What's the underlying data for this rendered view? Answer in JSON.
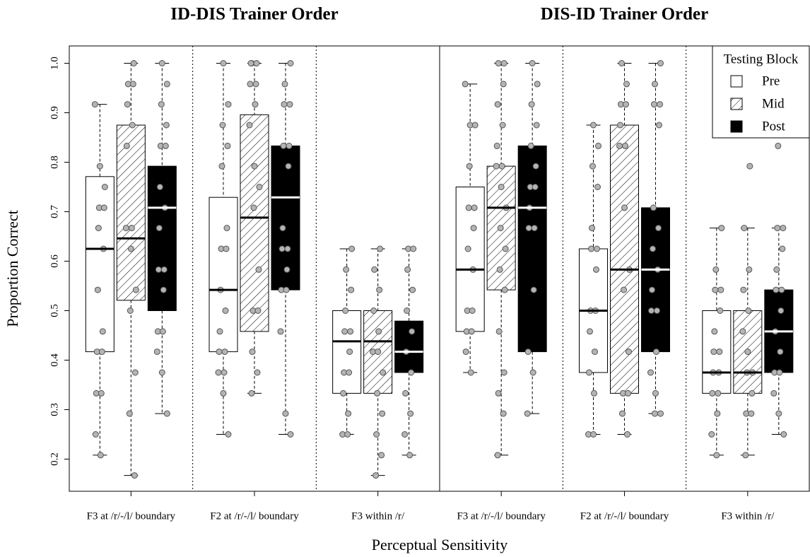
{
  "chart_data": {
    "type": "box",
    "ylabel": "Proportion Correct",
    "xlabel": "Perceptual Sensitivity",
    "ylim": [
      0.135,
      1.035
    ],
    "yticks": [
      0.2,
      0.3,
      0.4,
      0.5,
      0.6,
      0.7,
      0.8,
      0.9,
      {
        "value": 1.0,
        "label": "1.0"
      }
    ],
    "legend": {
      "title": "Testing Block",
      "corner": "top-right"
    },
    "series": [
      {
        "name": "Pre",
        "color": "#ffffff",
        "median_color": "#000000"
      },
      {
        "name": "Mid",
        "color": "hatch",
        "median_color": "#000000"
      },
      {
        "name": "Post",
        "color": "#000000",
        "median_color": "#ffffff"
      }
    ],
    "panels": [
      {
        "title": "ID-DIS Trainer Order",
        "groups": [
          {
            "name": "F3 at /r/-/l/ boundary",
            "boxes": [
              {
                "whislo": 0.208,
                "q1": 0.417,
                "med": 0.625,
                "q3": 0.771,
                "whishi": 0.917,
                "points": [
                  0.917,
                  0.792,
                  0.75,
                  0.708,
                  0.708,
                  0.667,
                  0.625,
                  0.542,
                  0.458,
                  0.417,
                  0.417,
                  0.333,
                  0.333,
                  0.25,
                  0.208
                ]
              },
              {
                "whislo": 0.167,
                "q1": 0.521,
                "med": 0.646,
                "q3": 0.875,
                "whishi": 1.0,
                "points": [
                  1.0,
                  0.958,
                  0.958,
                  0.917,
                  0.875,
                  0.833,
                  0.667,
                  0.667,
                  0.625,
                  0.542,
                  0.5,
                  0.375,
                  0.292,
                  0.167
                ]
              },
              {
                "whislo": 0.292,
                "q1": 0.5,
                "med": 0.708,
                "q3": 0.792,
                "whishi": 1.0,
                "points": [
                  1.0,
                  0.958,
                  0.917,
                  0.875,
                  0.833,
                  0.833,
                  0.75,
                  0.708,
                  0.667,
                  0.583,
                  0.583,
                  0.542,
                  0.458,
                  0.458,
                  0.417,
                  0.375,
                  0.292
                ]
              }
            ]
          },
          {
            "name": "F2 at /r/-/l/ boundary",
            "boxes": [
              {
                "whislo": 0.25,
                "q1": 0.417,
                "med": 0.542,
                "q3": 0.729,
                "whishi": 1.0,
                "points": [
                  1.0,
                  0.917,
                  0.875,
                  0.833,
                  0.792,
                  0.667,
                  0.625,
                  0.625,
                  0.542,
                  0.5,
                  0.458,
                  0.417,
                  0.417,
                  0.375,
                  0.375,
                  0.333,
                  0.25
                ]
              },
              {
                "whislo": 0.333,
                "q1": 0.458,
                "med": 0.688,
                "q3": 0.896,
                "whishi": 1.0,
                "points": [
                  1.0,
                  1.0,
                  1.0,
                  0.958,
                  0.958,
                  0.917,
                  0.875,
                  0.792,
                  0.75,
                  0.708,
                  0.583,
                  0.5,
                  0.5,
                  0.417,
                  0.375,
                  0.333
                ]
              },
              {
                "whislo": 0.25,
                "q1": 0.542,
                "med": 0.729,
                "q3": 0.833,
                "whishi": 1.0,
                "points": [
                  1.0,
                  0.958,
                  0.917,
                  0.917,
                  0.833,
                  0.833,
                  0.792,
                  0.667,
                  0.625,
                  0.625,
                  0.583,
                  0.542,
                  0.542,
                  0.458,
                  0.292,
                  0.25
                ]
              }
            ]
          },
          {
            "name": "F3 within /r/",
            "boxes": [
              {
                "whislo": 0.25,
                "q1": 0.333,
                "med": 0.438,
                "q3": 0.5,
                "whishi": 0.625,
                "points": [
                  0.625,
                  0.583,
                  0.542,
                  0.5,
                  0.458,
                  0.458,
                  0.417,
                  0.375,
                  0.375,
                  0.333,
                  0.292,
                  0.25,
                  0.25
                ]
              },
              {
                "whislo": 0.167,
                "q1": 0.333,
                "med": 0.438,
                "q3": 0.5,
                "whishi": 0.625,
                "points": [
                  0.625,
                  0.583,
                  0.542,
                  0.5,
                  0.458,
                  0.417,
                  0.417,
                  0.375,
                  0.333,
                  0.292,
                  0.25,
                  0.208,
                  0.167
                ]
              },
              {
                "whislo": 0.208,
                "q1": 0.375,
                "med": 0.417,
                "q3": 0.479,
                "whishi": 0.625,
                "points": [
                  0.625,
                  0.625,
                  0.583,
                  0.542,
                  0.5,
                  0.458,
                  0.417,
                  0.375,
                  0.333,
                  0.292,
                  0.25,
                  0.208
                ]
              }
            ]
          }
        ]
      },
      {
        "title": "DIS-ID Trainer Order",
        "groups": [
          {
            "name": "F3 at /r/-/l/ boundary",
            "boxes": [
              {
                "whislo": 0.375,
                "q1": 0.458,
                "med": 0.583,
                "q3": 0.75,
                "whishi": 0.958,
                "points": [
                  0.958,
                  0.875,
                  0.875,
                  0.792,
                  0.708,
                  0.708,
                  0.667,
                  0.625,
                  0.583,
                  0.5,
                  0.5,
                  0.458,
                  0.458,
                  0.417,
                  0.375
                ]
              },
              {
                "whislo": 0.208,
                "q1": 0.542,
                "med": 0.708,
                "q3": 0.792,
                "whishi": 1.0,
                "points": [
                  1.0,
                  1.0,
                  0.958,
                  0.917,
                  0.875,
                  0.833,
                  0.792,
                  0.792,
                  0.75,
                  0.708,
                  0.667,
                  0.625,
                  0.583,
                  0.542,
                  0.458,
                  0.375,
                  0.333,
                  0.292,
                  0.208
                ]
              },
              {
                "whislo": 0.292,
                "q1": 0.417,
                "med": 0.708,
                "q3": 0.833,
                "whishi": 1.0,
                "points": [
                  1.0,
                  0.958,
                  0.917,
                  0.875,
                  0.833,
                  0.792,
                  0.75,
                  0.75,
                  0.708,
                  0.667,
                  0.667,
                  0.542,
                  0.417,
                  0.375,
                  0.292
                ]
              }
            ]
          },
          {
            "name": "F2 at /r/-/l/ boundary",
            "boxes": [
              {
                "whislo": 0.25,
                "q1": 0.375,
                "med": 0.5,
                "q3": 0.625,
                "whishi": 0.875,
                "points": [
                  0.875,
                  0.833,
                  0.792,
                  0.75,
                  0.667,
                  0.625,
                  0.625,
                  0.583,
                  0.5,
                  0.5,
                  0.458,
                  0.417,
                  0.375,
                  0.333,
                  0.25,
                  0.25
                ]
              },
              {
                "whislo": 0.25,
                "q1": 0.333,
                "med": 0.583,
                "q3": 0.875,
                "whishi": 1.0,
                "points": [
                  1.0,
                  0.958,
                  0.917,
                  0.917,
                  0.875,
                  0.833,
                  0.833,
                  0.708,
                  0.583,
                  0.542,
                  0.417,
                  0.333,
                  0.333,
                  0.292,
                  0.25
                ]
              },
              {
                "whislo": 0.292,
                "q1": 0.417,
                "med": 0.583,
                "q3": 0.708,
                "whishi": 1.0,
                "points": [
                  1.0,
                  0.958,
                  0.917,
                  0.917,
                  0.875,
                  0.708,
                  0.667,
                  0.625,
                  0.583,
                  0.542,
                  0.5,
                  0.5,
                  0.417,
                  0.375,
                  0.333,
                  0.292,
                  0.292
                ]
              }
            ]
          },
          {
            "name": "F3 within /r/",
            "boxes": [
              {
                "whislo": 0.208,
                "q1": 0.333,
                "med": 0.375,
                "q3": 0.5,
                "whishi": 0.667,
                "points": [
                  0.667,
                  0.583,
                  0.542,
                  0.542,
                  0.5,
                  0.458,
                  0.417,
                  0.417,
                  0.375,
                  0.375,
                  0.333,
                  0.333,
                  0.292,
                  0.25,
                  0.208
                ]
              },
              {
                "whislo": 0.208,
                "q1": 0.333,
                "med": 0.375,
                "q3": 0.5,
                "whishi": 0.667,
                "points": [
                  0.792,
                  0.667,
                  0.583,
                  0.542,
                  0.5,
                  0.458,
                  0.417,
                  0.375,
                  0.375,
                  0.333,
                  0.292,
                  0.292,
                  0.208
                ]
              },
              {
                "whislo": 0.25,
                "q1": 0.375,
                "med": 0.458,
                "q3": 0.542,
                "whishi": 0.667,
                "points": [
                  0.833,
                  0.667,
                  0.667,
                  0.625,
                  0.583,
                  0.542,
                  0.542,
                  0.5,
                  0.458,
                  0.417,
                  0.375,
                  0.375,
                  0.333,
                  0.292,
                  0.25
                ]
              }
            ]
          }
        ]
      }
    ]
  }
}
